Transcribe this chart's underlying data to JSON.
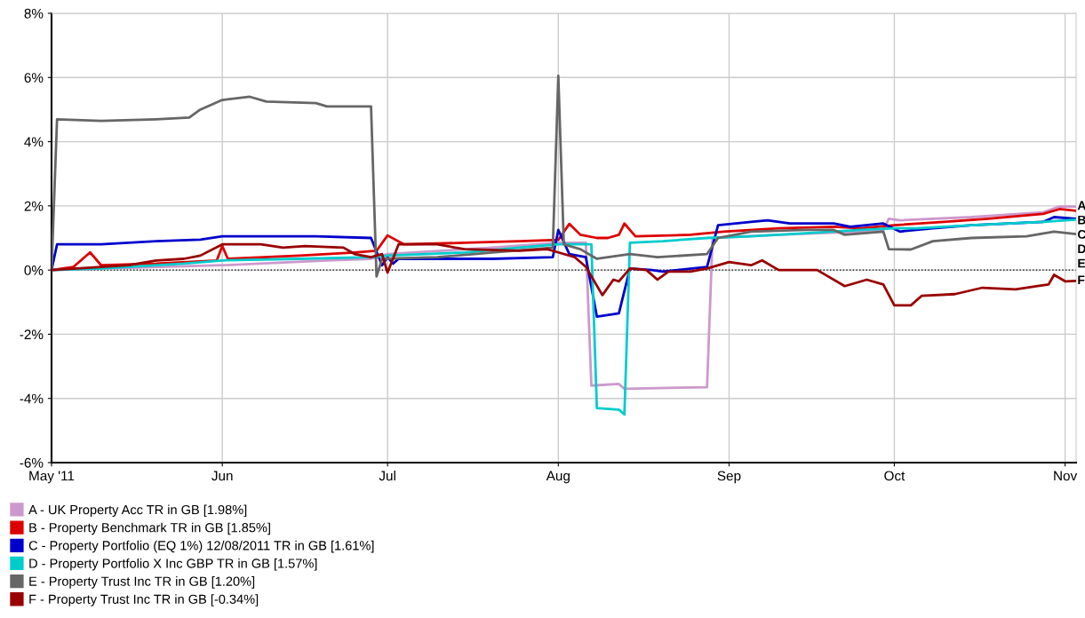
{
  "chart_data": {
    "type": "line",
    "xlim": [
      "2011-05-01",
      "2011-11-03"
    ],
    "xticks": [
      {
        "value": "2011-05-01",
        "label": "May '11"
      },
      {
        "value": "2011-06-01",
        "label": "Jun"
      },
      {
        "value": "2011-07-01",
        "label": "Jul"
      },
      {
        "value": "2011-08-01",
        "label": "Aug"
      },
      {
        "value": "2011-09-01",
        "label": "Sep"
      },
      {
        "value": "2011-10-01",
        "label": "Oct"
      },
      {
        "value": "2011-11-01",
        "label": "Nov"
      }
    ],
    "ylim": [
      -6,
      8
    ],
    "yticks": [
      {
        "value": -6,
        "label": "-6%"
      },
      {
        "value": -4,
        "label": "-4%"
      },
      {
        "value": -2,
        "label": "-2%"
      },
      {
        "value": 0,
        "label": "0%"
      },
      {
        "value": 2,
        "label": "2%"
      },
      {
        "value": 4,
        "label": "4%"
      },
      {
        "value": 6,
        "label": "6%"
      },
      {
        "value": 8,
        "label": "8%"
      }
    ],
    "grid": true,
    "legend": "bottom",
    "marker": "none",
    "line_style": "solid",
    "ref_lines": [
      {
        "axis": "y",
        "value": 0,
        "color": "#000000",
        "line_style": "dotted"
      }
    ],
    "annotations": [
      "A",
      "B",
      "C",
      "D",
      "E",
      "F"
    ],
    "series": [
      {
        "name": "A - UK Property Acc TR in GB [1.98%]",
        "color": "#cc99cc",
        "x": [
          "2011-05-01",
          "2011-06-01",
          "2011-06-20",
          "2011-06-28",
          "2011-07-01",
          "2011-07-20",
          "2011-08-01",
          "2011-08-06",
          "2011-08-07",
          "2011-08-12",
          "2011-08-13",
          "2011-08-28",
          "2011-08-29",
          "2011-09-10",
          "2011-09-25",
          "2011-09-29",
          "2011-09-30",
          "2011-10-02",
          "2011-10-15",
          "2011-10-28",
          "2011-10-31",
          "2011-11-03"
        ],
        "values": [
          0,
          0.15,
          0.3,
          0.35,
          0.5,
          0.7,
          0.85,
          0.85,
          -3.6,
          -3.55,
          -3.7,
          -3.65,
          1.0,
          1.1,
          1.2,
          1.25,
          1.6,
          1.55,
          1.65,
          1.8,
          1.98,
          1.98
        ]
      },
      {
        "name": "B - Property Benchmark TR in GB [1.85%]",
        "color": "#dd0000",
        "x": [
          "2011-05-01",
          "2011-05-05",
          "2011-05-08",
          "2011-05-10",
          "2011-05-20",
          "2011-05-31",
          "2011-06-01",
          "2011-06-02",
          "2011-06-15",
          "2011-06-25",
          "2011-06-29",
          "2011-07-01",
          "2011-07-04",
          "2011-07-15",
          "2011-07-25",
          "2011-08-01",
          "2011-08-03",
          "2011-08-05",
          "2011-08-08",
          "2011-08-10",
          "2011-08-12",
          "2011-08-13",
          "2011-08-15",
          "2011-08-25",
          "2011-08-31",
          "2011-09-10",
          "2011-09-20",
          "2011-09-25",
          "2011-10-01",
          "2011-10-10",
          "2011-10-18",
          "2011-10-28",
          "2011-10-31",
          "2011-11-03"
        ],
        "values": [
          0,
          0.1,
          0.55,
          0.15,
          0.2,
          0.3,
          0.75,
          0.35,
          0.45,
          0.55,
          0.6,
          1.08,
          0.8,
          0.85,
          0.9,
          0.94,
          1.44,
          1.1,
          1.0,
          1.0,
          1.1,
          1.45,
          1.05,
          1.1,
          1.2,
          1.3,
          1.35,
          1.3,
          1.4,
          1.5,
          1.6,
          1.75,
          1.9,
          1.85
        ]
      },
      {
        "name": "C - Property Portfolio (EQ 1%) 12/08/2011 TR in GB [1.61%]",
        "color": "#0000cc",
        "x": [
          "2011-05-01",
          "2011-05-02",
          "2011-05-10",
          "2011-05-20",
          "2011-05-28",
          "2011-06-01",
          "2011-06-10",
          "2011-06-18",
          "2011-06-28",
          "2011-06-30",
          "2011-07-01",
          "2011-07-02",
          "2011-07-03",
          "2011-07-20",
          "2011-07-31",
          "2011-08-01",
          "2011-08-03",
          "2011-08-06",
          "2011-08-08",
          "2011-08-12",
          "2011-08-14",
          "2011-08-18",
          "2011-08-20",
          "2011-08-28",
          "2011-08-30",
          "2011-09-05",
          "2011-09-08",
          "2011-09-12",
          "2011-09-20",
          "2011-09-23",
          "2011-09-29",
          "2011-10-02",
          "2011-10-08",
          "2011-10-15",
          "2011-10-22",
          "2011-10-28",
          "2011-10-30",
          "2011-11-03"
        ],
        "values": [
          0,
          0.8,
          0.8,
          0.9,
          0.95,
          1.05,
          1.05,
          1.05,
          1.0,
          0.15,
          0.4,
          0.2,
          0.35,
          0.35,
          0.4,
          1.25,
          0.5,
          0.4,
          -1.45,
          -1.35,
          0.05,
          0.0,
          -0.05,
          0.1,
          1.4,
          1.5,
          1.55,
          1.45,
          1.45,
          1.35,
          1.45,
          1.2,
          1.3,
          1.4,
          1.45,
          1.5,
          1.65,
          1.6
        ]
      },
      {
        "name": "D - Property Portfolio X Inc GBP TR in GB [1.57%]",
        "color": "#00cccc",
        "x": [
          "2011-05-01",
          "2011-05-10",
          "2011-05-25",
          "2011-06-01",
          "2011-06-15",
          "2011-06-28",
          "2011-07-01",
          "2011-07-15",
          "2011-07-25",
          "2011-08-01",
          "2011-08-07",
          "2011-08-08",
          "2011-08-12",
          "2011-08-13",
          "2011-08-14",
          "2011-08-20",
          "2011-08-28",
          "2011-09-05",
          "2011-09-15",
          "2011-09-25",
          "2011-10-01",
          "2011-10-05",
          "2011-10-15",
          "2011-10-28",
          "2011-11-03"
        ],
        "values": [
          0,
          0.05,
          0.2,
          0.3,
          0.35,
          0.4,
          0.45,
          0.55,
          0.7,
          0.8,
          0.8,
          -4.3,
          -4.35,
          -4.5,
          0.85,
          0.9,
          1.0,
          1.05,
          1.15,
          1.25,
          1.3,
          1.3,
          1.4,
          1.5,
          1.57
        ]
      },
      {
        "name": "E - Property Trust Inc TR in GB [1.20%]",
        "color": "#666666",
        "x": [
          "2011-05-01",
          "2011-05-02",
          "2011-05-10",
          "2011-05-20",
          "2011-05-26",
          "2011-05-28",
          "2011-06-01",
          "2011-06-06",
          "2011-06-09",
          "2011-06-18",
          "2011-06-20",
          "2011-06-28",
          "2011-06-29",
          "2011-06-30",
          "2011-07-10",
          "2011-07-20",
          "2011-07-31",
          "2011-08-01",
          "2011-08-02",
          "2011-08-05",
          "2011-08-08",
          "2011-08-10",
          "2011-08-14",
          "2011-08-19",
          "2011-08-28",
          "2011-08-30",
          "2011-09-05",
          "2011-09-15",
          "2011-09-20",
          "2011-09-22",
          "2011-09-29",
          "2011-09-30",
          "2011-10-04",
          "2011-10-08",
          "2011-10-15",
          "2011-10-25",
          "2011-10-30",
          "2011-11-03"
        ],
        "values": [
          0,
          4.7,
          4.65,
          4.7,
          4.75,
          5.0,
          5.3,
          5.4,
          5.25,
          5.2,
          5.1,
          5.1,
          -0.2,
          0.35,
          0.4,
          0.55,
          0.7,
          6.05,
          0.8,
          0.65,
          0.35,
          0.4,
          0.5,
          0.4,
          0.5,
          1.0,
          1.2,
          1.25,
          1.25,
          1.1,
          1.2,
          0.65,
          0.64,
          0.9,
          1.0,
          1.05,
          1.2,
          1.12
        ]
      },
      {
        "name": "F - Property Trust Inc TR in GB [-0.34%]",
        "color": "#990000",
        "x": [
          "2011-05-01",
          "2011-05-10",
          "2011-05-15",
          "2011-05-20",
          "2011-05-25",
          "2011-05-28",
          "2011-06-01",
          "2011-06-08",
          "2011-06-12",
          "2011-06-16",
          "2011-06-23",
          "2011-06-25",
          "2011-06-28",
          "2011-06-30",
          "2011-07-01",
          "2011-07-03",
          "2011-07-10",
          "2011-07-15",
          "2011-07-25",
          "2011-07-30",
          "2011-08-01",
          "2011-08-04",
          "2011-08-06",
          "2011-08-09",
          "2011-08-11",
          "2011-08-12",
          "2011-08-14",
          "2011-08-17",
          "2011-08-19",
          "2011-08-21",
          "2011-08-25",
          "2011-08-28",
          "2011-09-01",
          "2011-09-05",
          "2011-09-07",
          "2011-09-10",
          "2011-09-17",
          "2011-09-22",
          "2011-09-26",
          "2011-09-29",
          "2011-10-01",
          "2011-10-04",
          "2011-10-06",
          "2011-10-12",
          "2011-10-17",
          "2011-10-23",
          "2011-10-27",
          "2011-10-29",
          "2011-10-30",
          "2011-11-01",
          "2011-11-03"
        ],
        "values": [
          0,
          0.1,
          0.15,
          0.3,
          0.35,
          0.45,
          0.8,
          0.8,
          0.7,
          0.75,
          0.7,
          0.5,
          0.4,
          0.5,
          -0.08,
          0.8,
          0.8,
          0.65,
          0.6,
          0.65,
          0.55,
          0.4,
          0.1,
          -0.78,
          -0.3,
          -0.35,
          0.05,
          0.0,
          -0.3,
          -0.05,
          -0.05,
          0.05,
          0.25,
          0.15,
          0.3,
          0.0,
          0.0,
          -0.5,
          -0.3,
          -0.45,
          -1.1,
          -1.1,
          -0.8,
          -0.75,
          -0.55,
          -0.6,
          -0.5,
          -0.45,
          -0.15,
          -0.35,
          -0.34
        ]
      }
    ]
  }
}
